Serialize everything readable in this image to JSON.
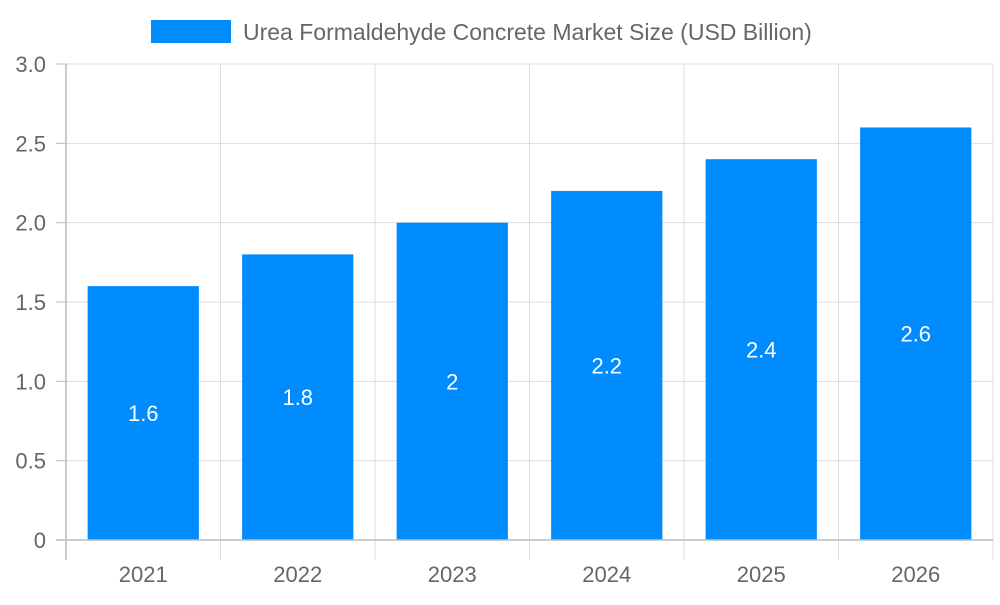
{
  "chart_data": {
    "type": "bar",
    "title": "",
    "xlabel": "",
    "ylabel": "",
    "categories": [
      "2021",
      "2022",
      "2023",
      "2024",
      "2025",
      "2026"
    ],
    "series": [
      {
        "name": "Urea Formaldehyde Concrete Market Size (USD Billion)",
        "values": [
          1.6,
          1.8,
          2,
          2.2,
          2.4,
          2.6
        ],
        "data_labels": [
          "1.6",
          "1.8",
          "2",
          "2.2",
          "2.4",
          "2.6"
        ],
        "color": "#008cff"
      }
    ],
    "ylim": [
      0,
      3
    ],
    "yticks": [
      "0",
      "0.5",
      "1.0",
      "1.5",
      "2.0",
      "2.5",
      "3.0"
    ],
    "grid": true,
    "legend": "top-center"
  }
}
